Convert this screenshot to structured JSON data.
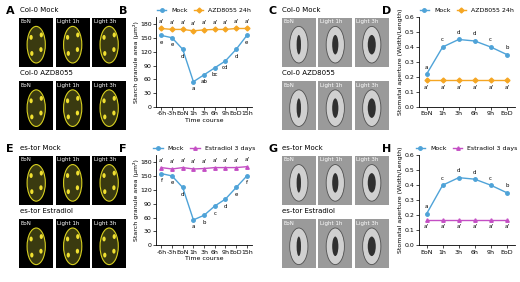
{
  "panels": [
    {
      "panel": "A",
      "type": "fluorescence",
      "rows": [
        {
          "label": "Col-0 Mock",
          "images": [
            "EoN",
            "Light 1h",
            "Light 3h"
          ]
        },
        {
          "label": "Col-0 AZD8055",
          "images": [
            "EoN",
            "Light 1h",
            "Light 3h"
          ]
        }
      ]
    },
    {
      "panel": "C",
      "type": "brightfield",
      "rows": [
        {
          "label": "Col-0 Mock",
          "images": [
            "EoN",
            "Light 1h",
            "Light 3h"
          ]
        },
        {
          "label": "Col-0 AZD8055",
          "images": [
            "EoN",
            "Light 1h",
            "Light 3h"
          ]
        }
      ]
    },
    {
      "panel": "E",
      "type": "fluorescence",
      "rows": [
        {
          "label": "es-tor Mock",
          "images": [
            "EoN",
            "Light 1h",
            "Light 3h"
          ]
        },
        {
          "label": "es-tor Estradiol",
          "images": [
            "EoN",
            "Light 1h",
            "Light 3h"
          ]
        }
      ]
    },
    {
      "panel": "G",
      "type": "brightfield",
      "rows": [
        {
          "label": "es-tor Mock",
          "images": [
            "EoN",
            "Light 1h",
            "Light 3h"
          ]
        },
        {
          "label": "es-tor Estradiol",
          "images": [
            "EoN",
            "Light 1h",
            "Light 3h"
          ]
        }
      ]
    }
  ],
  "chart_data": [
    {
      "panel": "B",
      "type": "line",
      "categories": [
        "-6h",
        "-3h",
        "EoN",
        "1h",
        "3h",
        "6h",
        "9h",
        "EoD",
        "15h"
      ],
      "x_label": "Time course",
      "y_label": "Starch granule area (µm²)",
      "ylim": [
        0,
        195
      ],
      "yticks": [
        0,
        30,
        60,
        90,
        120,
        150,
        180
      ],
      "legend": "top",
      "series": [
        {
          "name": "Mock",
          "color": "#4fa3d8",
          "marker": "circle",
          "values": [
            155,
            150,
            125,
            55,
            70,
            85,
            100,
            125,
            155
          ],
          "letters": [
            "e",
            "e",
            "d",
            "a",
            "ab",
            "bc",
            "cd",
            "d",
            "e"
          ]
        },
        {
          "name": "AZD8055 24h",
          "color": "#f5a623",
          "marker": "diamond",
          "values": [
            170,
            168,
            168,
            165,
            167,
            168,
            168,
            170,
            170
          ],
          "letters": [
            "a'",
            "a'",
            "a'",
            "a'",
            "a'",
            "a'",
            "a'",
            "a'",
            "a'"
          ]
        }
      ]
    },
    {
      "panel": "D",
      "type": "line",
      "categories": [
        "EoN",
        "1h",
        "3h",
        "6h",
        "9h",
        "EoD"
      ],
      "y_label": "Stomatal aperture (Width/Length)",
      "ylim": [
        0.0,
        0.6
      ],
      "yticks": [
        0.0,
        0.1,
        0.2,
        0.3,
        0.4,
        0.5,
        0.6
      ],
      "legend": "top",
      "series": [
        {
          "name": "Mock",
          "color": "#4fa3d8",
          "marker": "circle",
          "values": [
            0.22,
            0.4,
            0.45,
            0.44,
            0.4,
            0.35
          ],
          "letters": [
            "a",
            "c",
            "d",
            "d",
            "c",
            "b"
          ]
        },
        {
          "name": "AZD8055 24h",
          "color": "#f5a623",
          "marker": "diamond",
          "values": [
            0.18,
            0.18,
            0.18,
            0.18,
            0.18,
            0.18
          ],
          "letters": [
            "a'",
            "a'",
            "a'",
            "a'",
            "a'",
            "a'"
          ]
        }
      ]
    },
    {
      "panel": "F",
      "type": "line",
      "categories": [
        "-6h",
        "-3h",
        "EoN",
        "1h",
        "3h",
        "6h",
        "9h",
        "EoD",
        "15h"
      ],
      "x_label": "Time course",
      "y_label": "Starch granule area (µm²)",
      "ylim": [
        0,
        195
      ],
      "yticks": [
        0,
        30,
        60,
        90,
        120,
        150,
        180
      ],
      "legend": "top",
      "series": [
        {
          "name": "Mock",
          "color": "#4fa3d8",
          "marker": "circle",
          "values": [
            155,
            150,
            125,
            55,
            65,
            85,
            100,
            125,
            150
          ],
          "letters": [
            "f",
            "e",
            "d",
            "a",
            "b",
            "c",
            "d",
            "e",
            "f"
          ]
        },
        {
          "name": "Estradiol 3 days",
          "color": "#c44fc4",
          "marker": "triangle",
          "values": [
            168,
            165,
            168,
            165,
            166,
            168,
            168,
            168,
            170
          ],
          "letters": [
            "a'",
            "a'",
            "a'",
            "a'",
            "a'",
            "a'",
            "a'",
            "a'",
            "a'"
          ]
        }
      ]
    },
    {
      "panel": "H",
      "type": "line",
      "categories": [
        "EoN",
        "1h",
        "3h",
        "6h",
        "9h",
        "EoD"
      ],
      "y_label": "Stomatal aperture (Width/Length)",
      "ylim": [
        0.0,
        0.6
      ],
      "yticks": [
        0.0,
        0.1,
        0.2,
        0.3,
        0.4,
        0.5,
        0.6
      ],
      "legend": "top",
      "series": [
        {
          "name": "Mock",
          "color": "#4fa3d8",
          "marker": "circle",
          "values": [
            0.21,
            0.4,
            0.45,
            0.44,
            0.4,
            0.35
          ],
          "letters": [
            "a",
            "c",
            "d",
            "d",
            "c",
            "b"
          ]
        },
        {
          "name": "Estradiol 3 days",
          "color": "#c44fc4",
          "marker": "triangle",
          "values": [
            0.17,
            0.17,
            0.17,
            0.17,
            0.17,
            0.17
          ],
          "letters": [
            "a'",
            "a'",
            "a'",
            "a'",
            "a'",
            "a'"
          ]
        }
      ]
    }
  ]
}
